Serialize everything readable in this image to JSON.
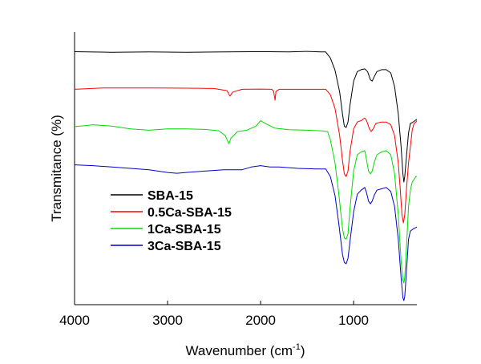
{
  "chart_data": {
    "type": "line",
    "title": "",
    "xlabel_main": "Wavenumber (cm",
    "xlabel_sup": "-1",
    "xlabel_tail": ")",
    "ylabel": "Transmitance (%)",
    "xlim": [
      4000,
      320
    ],
    "x_reversed": true,
    "xticks": [
      4000,
      3000,
      2000,
      1000
    ],
    "xtick_labels": [
      "4000",
      "3000",
      "2000",
      "1000"
    ],
    "y_units": "arbitrary (stacked, no tick labels)",
    "ylim": [
      0,
      100
    ],
    "grid": false,
    "legend_position": "center-left",
    "series": [
      {
        "name": "SBA-15",
        "color": "#000000",
        "points": [
          [
            4000,
            92.8
          ],
          [
            3600,
            92.6
          ],
          [
            3200,
            92.7
          ],
          [
            2800,
            92.6
          ],
          [
            2400,
            92.7
          ],
          [
            2100,
            92.8
          ],
          [
            1900,
            92.8
          ],
          [
            1700,
            92.7
          ],
          [
            1500,
            92.9
          ],
          [
            1350,
            92.7
          ],
          [
            1300,
            92.7
          ],
          [
            1250,
            90.5
          ],
          [
            1200,
            86
          ],
          [
            1150,
            78
          ],
          [
            1120,
            70
          ],
          [
            1100,
            65.5
          ],
          [
            1080,
            65
          ],
          [
            1060,
            67
          ],
          [
            1040,
            73
          ],
          [
            1000,
            82
          ],
          [
            960,
            85.5
          ],
          [
            920,
            86.2
          ],
          [
            880,
            86.5
          ],
          [
            850,
            85.5
          ],
          [
            820,
            82.5
          ],
          [
            800,
            82
          ],
          [
            780,
            83.5
          ],
          [
            750,
            85.5
          ],
          [
            700,
            86.2
          ],
          [
            650,
            86.2
          ],
          [
            600,
            85
          ],
          [
            560,
            80
          ],
          [
            520,
            70
          ],
          [
            490,
            58
          ],
          [
            470,
            48
          ],
          [
            460,
            45
          ],
          [
            450,
            47
          ],
          [
            430,
            55
          ],
          [
            410,
            63
          ],
          [
            390,
            66.5
          ],
          [
            370,
            66.8
          ],
          [
            340,
            67.5
          ],
          [
            320,
            68
          ]
        ]
      },
      {
        "name": "0.5Ca-SBA-15",
        "color": "#ff0000",
        "points": [
          [
            4000,
            79
          ],
          [
            3700,
            79.5
          ],
          [
            3400,
            79.5
          ],
          [
            3100,
            79.5
          ],
          [
            2800,
            79.4
          ],
          [
            2500,
            79.3
          ],
          [
            2360,
            78.5
          ],
          [
            2330,
            76.5
          ],
          [
            2300,
            78
          ],
          [
            2200,
            79
          ],
          [
            2000,
            79.1
          ],
          [
            1880,
            79
          ],
          [
            1860,
            78.3
          ],
          [
            1845,
            75
          ],
          [
            1835,
            78.2
          ],
          [
            1800,
            79
          ],
          [
            1600,
            79
          ],
          [
            1400,
            79
          ],
          [
            1300,
            79
          ],
          [
            1250,
            77
          ],
          [
            1200,
            72
          ],
          [
            1150,
            62
          ],
          [
            1120,
            53
          ],
          [
            1100,
            48
          ],
          [
            1080,
            47
          ],
          [
            1060,
            49
          ],
          [
            1040,
            56
          ],
          [
            1000,
            64.5
          ],
          [
            960,
            67
          ],
          [
            920,
            67.5
          ],
          [
            880,
            68.5
          ],
          [
            860,
            67.5
          ],
          [
            830,
            64.5
          ],
          [
            810,
            63.5
          ],
          [
            790,
            64.5
          ],
          [
            760,
            66.5
          ],
          [
            700,
            67
          ],
          [
            650,
            67
          ],
          [
            600,
            66
          ],
          [
            560,
            62
          ],
          [
            520,
            52
          ],
          [
            500,
            43
          ],
          [
            480,
            33
          ],
          [
            465,
            30
          ],
          [
            450,
            33
          ],
          [
            430,
            43
          ],
          [
            410,
            52
          ],
          [
            390,
            58
          ],
          [
            370,
            64
          ],
          [
            350,
            66.5
          ],
          [
            330,
            67
          ],
          [
            320,
            67.5
          ]
        ]
      },
      {
        "name": "1Ca-SBA-15",
        "color": "#00dd00",
        "points": [
          [
            4000,
            65.3
          ],
          [
            3800,
            66
          ],
          [
            3600,
            65.5
          ],
          [
            3400,
            64.5
          ],
          [
            3200,
            64
          ],
          [
            3000,
            64.5
          ],
          [
            2800,
            64.5
          ],
          [
            2600,
            64.3
          ],
          [
            2450,
            63.8
          ],
          [
            2380,
            62
          ],
          [
            2340,
            59
          ],
          [
            2320,
            61
          ],
          [
            2250,
            63.5
          ],
          [
            2150,
            64
          ],
          [
            2050,
            65.5
          ],
          [
            2000,
            67.5
          ],
          [
            1950,
            66.5
          ],
          [
            1850,
            64.8
          ],
          [
            1700,
            64.2
          ],
          [
            1500,
            64
          ],
          [
            1350,
            63.8
          ],
          [
            1280,
            63.5
          ],
          [
            1250,
            60.5
          ],
          [
            1200,
            52
          ],
          [
            1160,
            41
          ],
          [
            1120,
            28
          ],
          [
            1100,
            24.5
          ],
          [
            1080,
            24
          ],
          [
            1060,
            26
          ],
          [
            1040,
            35
          ],
          [
            1000,
            49
          ],
          [
            960,
            55
          ],
          [
            920,
            56
          ],
          [
            880,
            56.5
          ],
          [
            860,
            53
          ],
          [
            840,
            49
          ],
          [
            820,
            48
          ],
          [
            800,
            49
          ],
          [
            780,
            52
          ],
          [
            750,
            55
          ],
          [
            700,
            56
          ],
          [
            650,
            56.5
          ],
          [
            600,
            55
          ],
          [
            560,
            48
          ],
          [
            520,
            33
          ],
          [
            490,
            16
          ],
          [
            470,
            9
          ],
          [
            460,
            8
          ],
          [
            450,
            10
          ],
          [
            430,
            22
          ],
          [
            410,
            36
          ],
          [
            390,
            42
          ],
          [
            370,
            45
          ],
          [
            350,
            46
          ],
          [
            330,
            47
          ],
          [
            320,
            47
          ]
        ]
      },
      {
        "name": "3Ca-SBA-15",
        "color": "#0000cc",
        "points": [
          [
            4000,
            51.3
          ],
          [
            3800,
            51
          ],
          [
            3600,
            50.5
          ],
          [
            3400,
            50
          ],
          [
            3200,
            49.5
          ],
          [
            3000,
            48.5
          ],
          [
            2900,
            48.2
          ],
          [
            2800,
            48.5
          ],
          [
            2600,
            49
          ],
          [
            2400,
            49.5
          ],
          [
            2200,
            49.5
          ],
          [
            2100,
            50.5
          ],
          [
            2000,
            51
          ],
          [
            1900,
            50.5
          ],
          [
            1800,
            50.5
          ],
          [
            1600,
            50
          ],
          [
            1400,
            49.8
          ],
          [
            1300,
            49.8
          ],
          [
            1250,
            47
          ],
          [
            1200,
            40
          ],
          [
            1160,
            30
          ],
          [
            1120,
            18.5
          ],
          [
            1100,
            15.5
          ],
          [
            1080,
            15
          ],
          [
            1060,
            17
          ],
          [
            1040,
            23
          ],
          [
            1000,
            34
          ],
          [
            960,
            40.5
          ],
          [
            920,
            42
          ],
          [
            880,
            43
          ],
          [
            860,
            41
          ],
          [
            840,
            38
          ],
          [
            820,
            37
          ],
          [
            800,
            38
          ],
          [
            780,
            40
          ],
          [
            750,
            42
          ],
          [
            700,
            42.5
          ],
          [
            650,
            43
          ],
          [
            600,
            41.5
          ],
          [
            560,
            36
          ],
          [
            520,
            24
          ],
          [
            490,
            10
          ],
          [
            470,
            2.5
          ],
          [
            460,
            1.5
          ],
          [
            450,
            3
          ],
          [
            430,
            13
          ],
          [
            410,
            24
          ],
          [
            390,
            27
          ],
          [
            370,
            27.5
          ],
          [
            350,
            28
          ],
          [
            330,
            28.3
          ],
          [
            320,
            28.5
          ]
        ]
      }
    ]
  }
}
